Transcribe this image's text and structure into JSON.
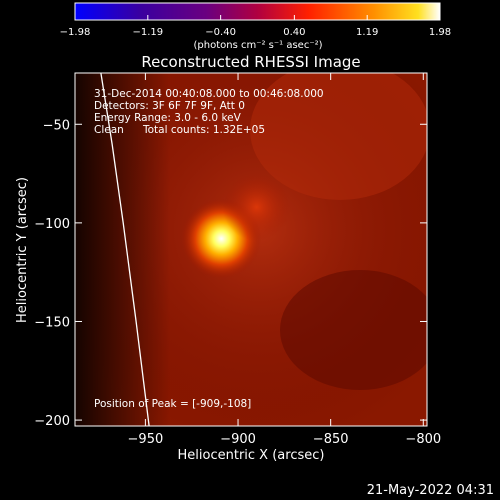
{
  "chart_data": {
    "type": "heatmap",
    "title": "Reconstructed RHESSI Image",
    "xlabel": "Heliocentric X (arcsec)",
    "ylabel": "Heliocentric Y (arcsec)",
    "xlim": [
      -988,
      -798
    ],
    "ylim": [
      -203,
      -24
    ],
    "x_ticks": [
      -950,
      -900,
      -850,
      -800
    ],
    "y_ticks": [
      -50,
      -100,
      -150,
      -200
    ],
    "x_tick_labels": [
      "−950",
      "−900",
      "−850",
      "−800"
    ],
    "y_tick_labels": [
      "−50",
      "−100",
      "−150",
      "−200"
    ],
    "colorbar": {
      "range": [
        -1.98,
        1.98
      ],
      "ticks": [
        -1.98,
        -1.19,
        -0.4,
        0.4,
        1.19,
        1.98
      ],
      "tick_labels": [
        "−1.98",
        "−1.19",
        "−0.40",
        "0.40",
        "1.19",
        "1.98"
      ],
      "unit_label": "(photons cm⁻² s⁻¹ asec⁻²)"
    },
    "annotations": {
      "time_range": "31-Dec-2014 00:40:08.000 to 00:46:08.000",
      "detectors": "Detectors: 3F 6F 7F 9F, Att 0",
      "energy_range": "Energy Range: 3.0 - 6.0 keV",
      "algorithm": "Clean",
      "total_counts": "Total counts: 1.32E+05",
      "peak": "Position of Peak = [-909,-108]"
    },
    "peak_position": [
      -909,
      -108
    ],
    "limb_x_at_y": [
      [
        -974,
        -24
      ],
      [
        -968,
        -60
      ],
      [
        -962,
        -100
      ],
      [
        -955,
        -150
      ],
      [
        -948,
        -203
      ]
    ],
    "sources": [
      {
        "x": -909,
        "y": -108,
        "peak_value": 1.98
      },
      {
        "x": -890,
        "y": -92,
        "peak_value": 0.9
      }
    ]
  },
  "footer": {
    "timestamp": "21-May-2022 04:31"
  }
}
